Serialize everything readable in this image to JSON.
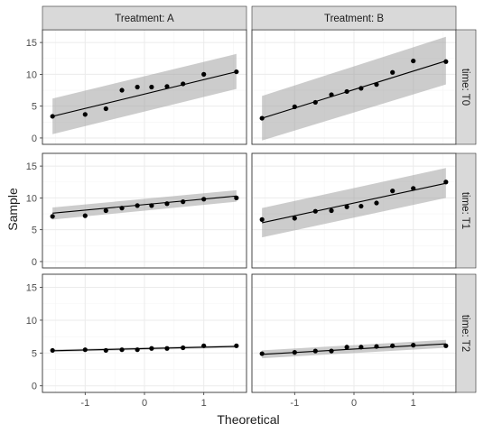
{
  "chart_data": {
    "type": "scatter",
    "subtype": "faceted Q-Q plot with fitted line and confidence band",
    "xlabel": "Theoretical",
    "ylabel": "Sample",
    "xlim": [
      -1.72,
      1.72
    ],
    "ylim": [
      -1,
      17
    ],
    "x_ticks": [
      -1,
      0,
      1
    ],
    "y_ticks": [
      0,
      5,
      10,
      15
    ],
    "grid": true,
    "col_facets": [
      "Treatment: A",
      "Treatment: B"
    ],
    "row_facets": [
      "time: T0",
      "time: T1",
      "time: T2"
    ],
    "x": [
      -1.55,
      -1.0,
      -0.65,
      -0.38,
      -0.12,
      0.12,
      0.38,
      0.65,
      1.0,
      1.55
    ],
    "panels": [
      {
        "col": "Treatment: A",
        "row": "time: T0",
        "y": [
          3.4,
          3.7,
          4.6,
          7.5,
          8.0,
          8.0,
          8.1,
          8.5,
          10.0,
          10.4
        ],
        "fit": [
          3.4,
          10.4
        ],
        "band_lower": [
          0.6,
          7.7
        ],
        "band_upper": [
          6.2,
          13.2
        ]
      },
      {
        "col": "Treatment: B",
        "row": "time: T0",
        "y": [
          3.1,
          4.9,
          5.6,
          6.8,
          7.3,
          7.8,
          8.4,
          10.3,
          12.1,
          12.0
        ],
        "fit": [
          3.1,
          12.1
        ],
        "band_lower": [
          -0.4,
          8.4
        ],
        "band_upper": [
          6.6,
          15.9
        ]
      },
      {
        "col": "Treatment: A",
        "row": "time: T1",
        "y": [
          7.1,
          7.2,
          8.0,
          8.4,
          8.8,
          8.8,
          9.1,
          9.4,
          9.8,
          10.0
        ],
        "fit": [
          7.6,
          10.3
        ],
        "band_lower": [
          6.6,
          9.4
        ],
        "band_upper": [
          8.5,
          11.2
        ]
      },
      {
        "col": "Treatment: B",
        "row": "time: T1",
        "y": [
          6.6,
          6.8,
          7.9,
          8.0,
          8.6,
          8.7,
          9.2,
          11.1,
          11.5,
          12.5
        ],
        "fit": [
          6.1,
          12.3
        ],
        "band_lower": [
          3.8,
          10.0
        ],
        "band_upper": [
          8.4,
          14.7
        ]
      },
      {
        "col": "Treatment: A",
        "row": "time: T2",
        "y": [
          5.4,
          5.5,
          5.4,
          5.5,
          5.5,
          5.7,
          5.7,
          5.8,
          6.1,
          6.1
        ],
        "fit": [
          5.35,
          6.0
        ],
        "band_lower": [
          5.15,
          5.8
        ],
        "band_upper": [
          5.55,
          6.2
        ]
      },
      {
        "col": "Treatment: B",
        "row": "time: T2",
        "y": [
          4.9,
          5.1,
          5.3,
          5.3,
          5.9,
          5.9,
          6.0,
          6.1,
          6.2,
          6.1
        ],
        "fit": [
          4.8,
          6.4
        ],
        "band_lower": [
          4.2,
          5.8
        ],
        "band_upper": [
          5.4,
          7.0
        ]
      }
    ]
  }
}
